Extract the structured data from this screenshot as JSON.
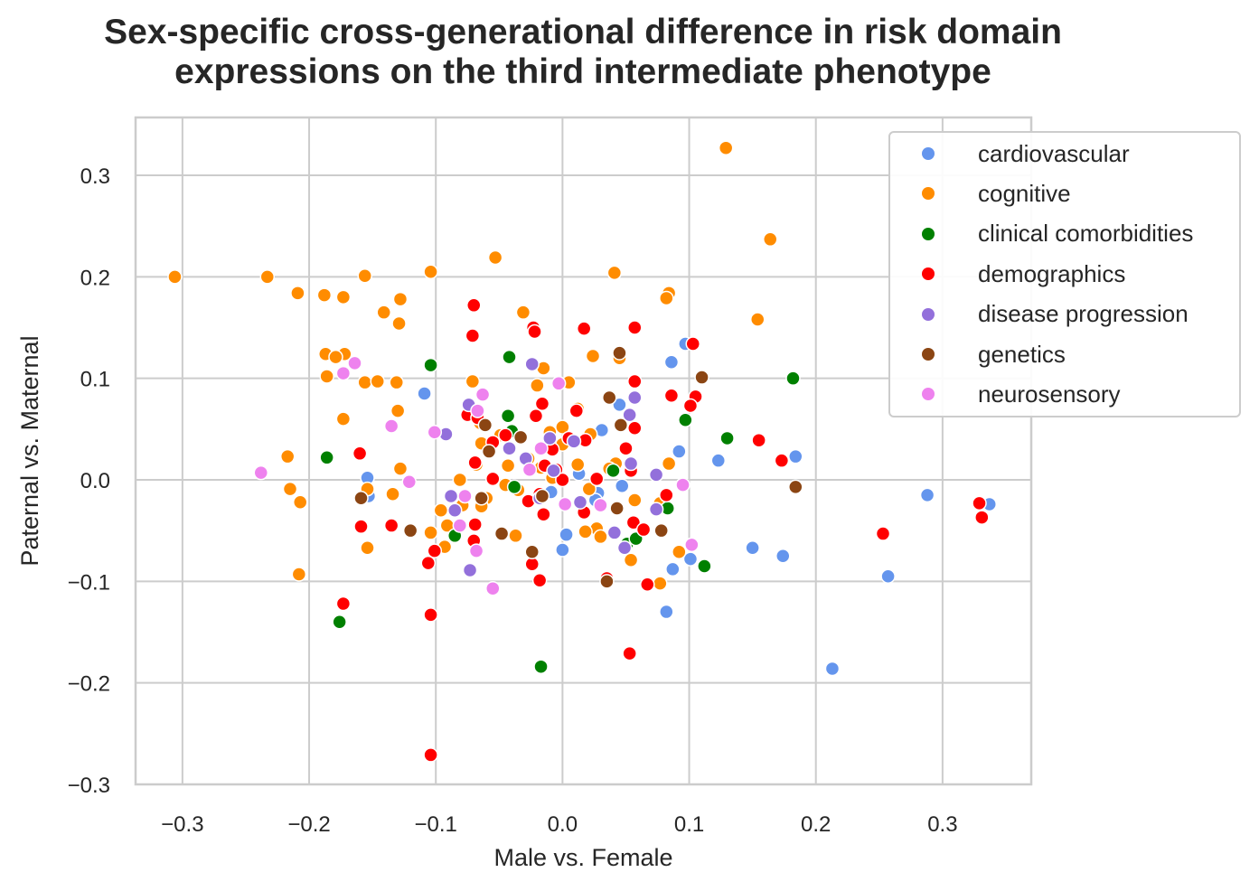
{
  "chart_data": {
    "type": "scatter",
    "title": [
      "Sex-specific cross-generational difference in risk domain",
      "expressions on the third intermediate phenotype"
    ],
    "xlabel": "Male vs. Female",
    "ylabel": "Paternal vs. Maternal",
    "xlim": [
      -0.337,
      0.37
    ],
    "ylim": [
      -0.3,
      0.357
    ],
    "xticks": [
      -0.3,
      -0.2,
      -0.1,
      0.0,
      0.1,
      0.2,
      0.3
    ],
    "xtick_labels": [
      "−0.3",
      "−0.2",
      "−0.1",
      "0.0",
      "0.1",
      "0.2",
      "0.3"
    ],
    "yticks": [
      -0.3,
      -0.2,
      -0.1,
      0.0,
      0.1,
      0.2,
      0.3
    ],
    "ytick_labels": [
      "−0.3",
      "−0.2",
      "−0.1",
      "0.0",
      "0.1",
      "0.2",
      "0.3"
    ],
    "grid": true,
    "legend_position": "upper-right, partially outside plot",
    "series": [
      {
        "name": "cardiovascular",
        "color": "#6495ed",
        "points": [
          [
            0.097,
            0.134
          ],
          [
            0.086,
            0.116
          ],
          [
            -0.109,
            0.085
          ],
          [
            0.045,
            0.074
          ],
          [
            0.031,
            0.049
          ],
          [
            0.184,
            0.023
          ],
          [
            0.123,
            0.019
          ],
          [
            0.092,
            0.028
          ],
          [
            -0.154,
            0.002
          ],
          [
            -0.153,
            -0.016
          ],
          [
            0.047,
            -0.006
          ],
          [
            0.013,
            0.006
          ],
          [
            -0.009,
            -0.012
          ],
          [
            0.288,
            -0.015
          ],
          [
            0.337,
            -0.024
          ],
          [
            0.028,
            -0.013
          ],
          [
            0.003,
            -0.054
          ],
          [
            0.0,
            -0.069
          ],
          [
            0.15,
            -0.067
          ],
          [
            0.174,
            -0.075
          ],
          [
            0.101,
            -0.078
          ],
          [
            0.087,
            -0.088
          ],
          [
            0.257,
            -0.095
          ],
          [
            0.082,
            -0.13
          ],
          [
            0.213,
            -0.186
          ],
          [
            0.051,
            -0.062
          ],
          [
            0.026,
            -0.02
          ]
        ]
      },
      {
        "name": "cognitive",
        "color": "#ff8c00",
        "points": [
          [
            0.129,
            0.327
          ],
          [
            -0.306,
            0.2
          ],
          [
            -0.233,
            0.2
          ],
          [
            -0.156,
            0.201
          ],
          [
            -0.104,
            0.205
          ],
          [
            -0.053,
            0.219
          ],
          [
            0.041,
            0.204
          ],
          [
            0.164,
            0.237
          ],
          [
            -0.209,
            0.184
          ],
          [
            -0.188,
            0.182
          ],
          [
            -0.173,
            0.18
          ],
          [
            0.084,
            0.184
          ],
          [
            0.082,
            0.179
          ],
          [
            -0.128,
            0.178
          ],
          [
            -0.141,
            0.165
          ],
          [
            -0.129,
            0.154
          ],
          [
            0.154,
            0.158
          ],
          [
            -0.031,
            0.165
          ],
          [
            -0.187,
            0.124
          ],
          [
            -0.172,
            0.124
          ],
          [
            -0.179,
            0.121
          ],
          [
            0.024,
            0.122
          ],
          [
            0.045,
            0.12
          ],
          [
            -0.186,
            0.102
          ],
          [
            -0.156,
            0.096
          ],
          [
            -0.146,
            0.097
          ],
          [
            -0.131,
            0.096
          ],
          [
            -0.071,
            0.097
          ],
          [
            0.005,
            0.096
          ],
          [
            -0.02,
            0.093
          ],
          [
            -0.015,
            0.11
          ],
          [
            0.012,
            0.07
          ],
          [
            -0.173,
            0.06
          ],
          [
            -0.13,
            0.068
          ],
          [
            -0.217,
            0.023
          ],
          [
            -0.065,
            0.056
          ],
          [
            -0.01,
            0.047
          ],
          [
            0.0,
            0.052
          ],
          [
            -0.064,
            0.036
          ],
          [
            -0.049,
            0.044
          ],
          [
            0.0,
            0.035
          ],
          [
            0.022,
            0.045
          ],
          [
            -0.043,
            0.014
          ],
          [
            -0.027,
            0.021
          ],
          [
            0.042,
            0.016
          ],
          [
            -0.068,
            0.015
          ],
          [
            -0.017,
            0.012
          ],
          [
            0.084,
            0.016
          ],
          [
            -0.128,
            0.011
          ],
          [
            -0.008,
            0.002
          ],
          [
            -0.081,
            0.0
          ],
          [
            -0.045,
            -0.005
          ],
          [
            -0.035,
            -0.01
          ],
          [
            -0.215,
            -0.009
          ],
          [
            -0.154,
            -0.009
          ],
          [
            -0.134,
            -0.014
          ],
          [
            -0.079,
            -0.025
          ],
          [
            -0.06,
            -0.018
          ],
          [
            -0.096,
            -0.03
          ],
          [
            -0.064,
            -0.026
          ],
          [
            0.021,
            -0.009
          ],
          [
            0.057,
            -0.02
          ],
          [
            0.077,
            -0.023
          ],
          [
            -0.207,
            -0.022
          ],
          [
            -0.091,
            -0.045
          ],
          [
            -0.104,
            -0.052
          ],
          [
            0.027,
            -0.048
          ],
          [
            0.018,
            -0.051
          ],
          [
            0.03,
            -0.056
          ],
          [
            -0.037,
            -0.055
          ],
          [
            -0.093,
            -0.066
          ],
          [
            -0.154,
            -0.067
          ],
          [
            0.054,
            -0.079
          ],
          [
            0.092,
            -0.071
          ],
          [
            -0.208,
            -0.093
          ],
          [
            0.077,
            -0.102
          ],
          [
            0.012,
            0.015
          ],
          [
            0.037,
            0.011
          ]
        ]
      },
      {
        "name": "clinical comorbidities",
        "color": "#008000",
        "points": [
          [
            -0.042,
            0.121
          ],
          [
            -0.104,
            0.113
          ],
          [
            0.182,
            0.1
          ],
          [
            -0.043,
            0.063
          ],
          [
            0.097,
            0.059
          ],
          [
            0.13,
            0.041
          ],
          [
            -0.186,
            0.022
          ],
          [
            -0.04,
            0.048
          ],
          [
            0.04,
            0.009
          ],
          [
            -0.038,
            -0.007
          ],
          [
            0.083,
            -0.028
          ],
          [
            -0.085,
            -0.055
          ],
          [
            0.051,
            -0.063
          ],
          [
            0.058,
            -0.058
          ],
          [
            0.112,
            -0.085
          ],
          [
            -0.176,
            -0.14
          ],
          [
            -0.017,
            -0.184
          ]
        ]
      },
      {
        "name": "demographics",
        "color": "#ff0000",
        "points": [
          [
            -0.07,
            0.172
          ],
          [
            -0.071,
            0.142
          ],
          [
            0.017,
            0.149
          ],
          [
            0.057,
            0.15
          ],
          [
            -0.023,
            0.15
          ],
          [
            -0.022,
            0.146
          ],
          [
            0.103,
            0.134
          ],
          [
            0.057,
            0.097
          ],
          [
            0.086,
            0.083
          ],
          [
            0.105,
            0.082
          ],
          [
            0.101,
            0.073
          ],
          [
            -0.016,
            0.075
          ],
          [
            0.011,
            0.068
          ],
          [
            -0.075,
            0.064
          ],
          [
            -0.021,
            0.063
          ],
          [
            0.057,
            0.051
          ],
          [
            -0.067,
            0.061
          ],
          [
            -0.045,
            0.044
          ],
          [
            0.005,
            0.041
          ],
          [
            0.018,
            0.039
          ],
          [
            0.155,
            0.039
          ],
          [
            -0.008,
            0.03
          ],
          [
            0.05,
            0.031
          ],
          [
            -0.055,
            0.037
          ],
          [
            0.173,
            0.019
          ],
          [
            -0.069,
            0.017
          ],
          [
            -0.014,
            0.014
          ],
          [
            0.054,
            0.009
          ],
          [
            -0.005,
            0.01
          ],
          [
            -0.055,
            0.001
          ],
          [
            0.0,
            0.0
          ],
          [
            0.027,
            0.001
          ],
          [
            -0.16,
            0.026
          ],
          [
            -0.027,
            -0.021
          ],
          [
            -0.018,
            -0.014
          ],
          [
            -0.015,
            -0.034
          ],
          [
            0.017,
            -0.032
          ],
          [
            0.082,
            -0.015
          ],
          [
            -0.159,
            -0.046
          ],
          [
            -0.135,
            -0.045
          ],
          [
            -0.069,
            -0.044
          ],
          [
            0.056,
            -0.042
          ],
          [
            0.064,
            -0.049
          ],
          [
            -0.101,
            -0.07
          ],
          [
            -0.07,
            -0.06
          ],
          [
            -0.024,
            -0.083
          ],
          [
            -0.106,
            -0.082
          ],
          [
            0.035,
            -0.097
          ],
          [
            -0.018,
            -0.099
          ],
          [
            0.067,
            -0.103
          ],
          [
            -0.173,
            -0.122
          ],
          [
            -0.104,
            -0.133
          ],
          [
            0.053,
            -0.171
          ],
          [
            -0.104,
            -0.271
          ],
          [
            0.253,
            -0.053
          ],
          [
            0.329,
            -0.023
          ],
          [
            0.331,
            -0.037
          ]
        ]
      },
      {
        "name": "disease progression",
        "color": "#9370db",
        "points": [
          [
            -0.024,
            0.114
          ],
          [
            0.057,
            0.081
          ],
          [
            -0.074,
            0.074
          ],
          [
            0.053,
            0.064
          ],
          [
            -0.092,
            0.045
          ],
          [
            -0.042,
            0.031
          ],
          [
            0.009,
            0.038
          ],
          [
            -0.01,
            0.041
          ],
          [
            -0.029,
            0.021
          ],
          [
            0.054,
            0.016
          ],
          [
            -0.007,
            0.009
          ],
          [
            0.074,
            0.005
          ],
          [
            -0.088,
            -0.016
          ],
          [
            -0.018,
            -0.018
          ],
          [
            0.014,
            -0.022
          ],
          [
            0.074,
            -0.029
          ],
          [
            -0.085,
            -0.03
          ],
          [
            0.041,
            -0.052
          ],
          [
            0.049,
            -0.067
          ],
          [
            -0.073,
            -0.089
          ]
        ]
      },
      {
        "name": "genetics",
        "color": "#8b4513",
        "points": [
          [
            0.045,
            0.125
          ],
          [
            0.11,
            0.101
          ],
          [
            0.037,
            0.081
          ],
          [
            -0.061,
            0.054
          ],
          [
            0.046,
            0.054
          ],
          [
            -0.058,
            0.028
          ],
          [
            -0.033,
            0.042
          ],
          [
            -0.159,
            -0.018
          ],
          [
            -0.016,
            -0.016
          ],
          [
            0.184,
            -0.007
          ],
          [
            0.043,
            -0.028
          ],
          [
            -0.064,
            -0.018
          ],
          [
            -0.12,
            -0.05
          ],
          [
            -0.048,
            -0.053
          ],
          [
            0.078,
            -0.05
          ],
          [
            -0.024,
            -0.071
          ],
          [
            0.035,
            -0.1
          ]
        ]
      },
      {
        "name": "neurosensory",
        "color": "#ee82ee",
        "points": [
          [
            -0.173,
            0.105
          ],
          [
            -0.164,
            0.115
          ],
          [
            -0.003,
            0.095
          ],
          [
            -0.063,
            0.084
          ],
          [
            -0.067,
            0.068
          ],
          [
            -0.101,
            0.047
          ],
          [
            -0.135,
            0.053
          ],
          [
            -0.017,
            0.031
          ],
          [
            -0.026,
            0.01
          ],
          [
            -0.238,
            0.007
          ],
          [
            -0.121,
            -0.002
          ],
          [
            0.095,
            -0.005
          ],
          [
            -0.077,
            -0.016
          ],
          [
            -0.081,
            -0.045
          ],
          [
            0.002,
            -0.024
          ],
          [
            0.03,
            -0.025
          ],
          [
            -0.068,
            -0.07
          ],
          [
            0.102,
            -0.064
          ],
          [
            -0.055,
            -0.107
          ]
        ]
      }
    ]
  }
}
